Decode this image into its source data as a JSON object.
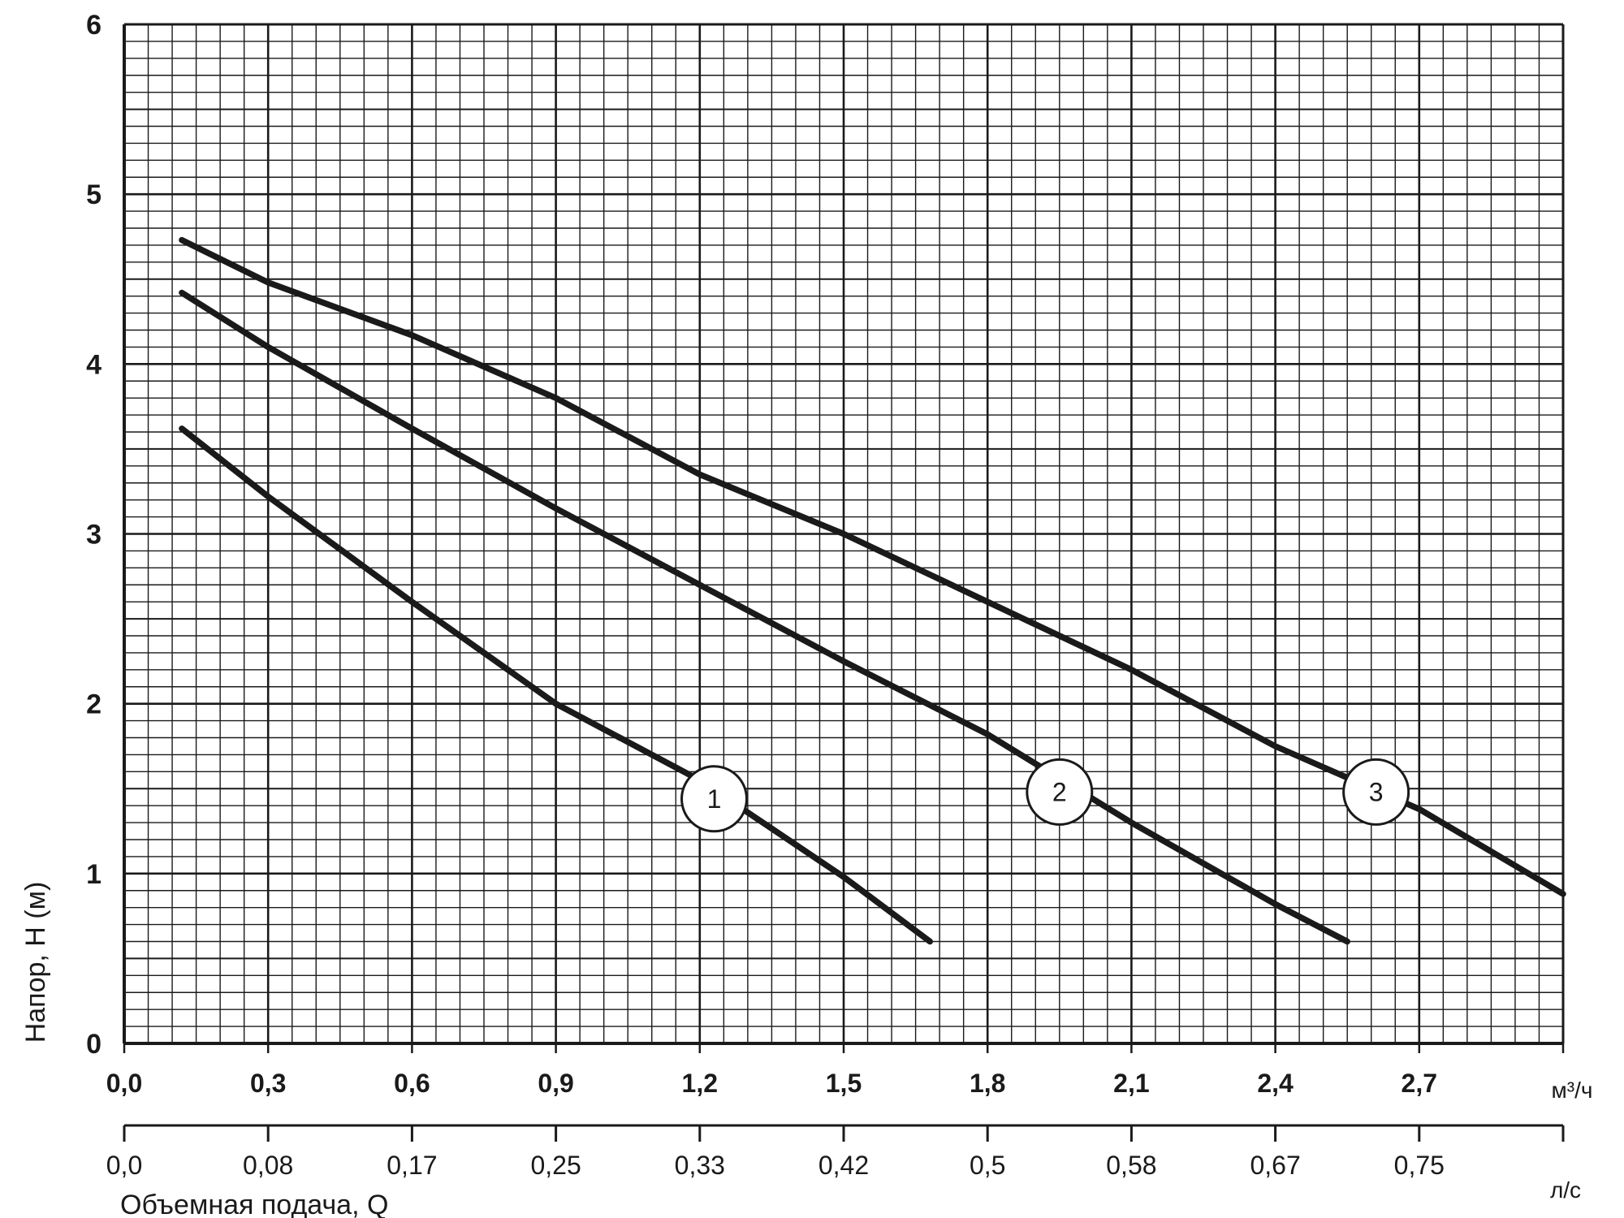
{
  "chart_data": {
    "type": "line",
    "ylabel": "Напор, H (м)",
    "xlabel": "Объемная подача, Q",
    "x_unit": "м³/ч",
    "x2_unit": "л/с",
    "xlim": [
      0,
      3.0
    ],
    "ylim": [
      0,
      6
    ],
    "grid": true,
    "y_ticks": [
      "0",
      "1",
      "2",
      "3",
      "4",
      "5",
      "6"
    ],
    "x_ticks": [
      "0,0",
      "0,3",
      "0,6",
      "0,9",
      "1,2",
      "1,5",
      "1,8",
      "2,1",
      "2,4",
      "2,7"
    ],
    "x2_ticks": [
      "0,0",
      "0,08",
      "0,17",
      "0,25",
      "0,33",
      "0,42",
      "0,5",
      "0,58",
      "0,67",
      "0,75"
    ],
    "series": [
      {
        "name": "1",
        "color": "#1a1a1a",
        "label_at": [
          1.23,
          1.44
        ],
        "points": [
          [
            0.12,
            3.62
          ],
          [
            0.3,
            3.22
          ],
          [
            0.6,
            2.6
          ],
          [
            0.9,
            2.0
          ],
          [
            1.2,
            1.55
          ],
          [
            1.5,
            0.98
          ],
          [
            1.68,
            0.6
          ]
        ]
      },
      {
        "name": "2",
        "color": "#1a1a1a",
        "label_at": [
          1.95,
          1.48
        ],
        "points": [
          [
            0.12,
            4.42
          ],
          [
            0.3,
            4.1
          ],
          [
            0.6,
            3.62
          ],
          [
            0.9,
            3.15
          ],
          [
            1.2,
            2.7
          ],
          [
            1.5,
            2.25
          ],
          [
            1.8,
            1.82
          ],
          [
            2.1,
            1.3
          ],
          [
            2.4,
            0.82
          ],
          [
            2.55,
            0.6
          ]
        ]
      },
      {
        "name": "3",
        "color": "#1a1a1a",
        "label_at": [
          2.61,
          1.48
        ],
        "points": [
          [
            0.12,
            4.73
          ],
          [
            0.3,
            4.48
          ],
          [
            0.6,
            4.17
          ],
          [
            0.9,
            3.8
          ],
          [
            1.2,
            3.35
          ],
          [
            1.5,
            3.0
          ],
          [
            1.8,
            2.6
          ],
          [
            2.1,
            2.2
          ],
          [
            2.4,
            1.75
          ],
          [
            2.7,
            1.38
          ],
          [
            3.0,
            0.88
          ]
        ]
      }
    ]
  }
}
